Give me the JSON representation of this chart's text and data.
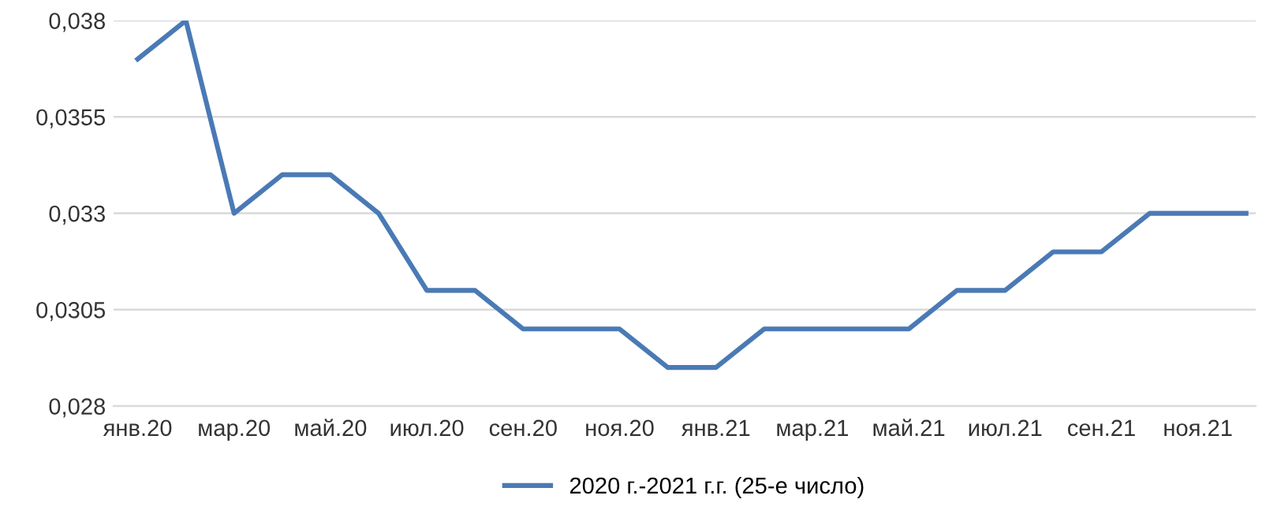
{
  "chart_data": {
    "type": "line",
    "categories": [
      "янв.20",
      null,
      "мар.20",
      null,
      "май.20",
      null,
      "июл.20",
      null,
      "сен.20",
      null,
      "ноя.20",
      null,
      "янв.21",
      null,
      "мар.21",
      null,
      "май.21",
      null,
      "июл.21",
      null,
      "сен.21",
      null,
      "ноя.21",
      null
    ],
    "series": [
      {
        "name": "2020 г.-2021 г.г. (25-е число)",
        "color": "#4a7ab5",
        "values": [
          0.037,
          0.038,
          0.033,
          0.034,
          0.034,
          0.033,
          0.031,
          0.031,
          0.03,
          0.03,
          0.03,
          0.029,
          0.029,
          0.03,
          0.03,
          0.03,
          0.03,
          0.031,
          0.031,
          0.032,
          0.032,
          0.033,
          0.033,
          0.033
        ]
      }
    ],
    "ylim": [
      0.028,
      0.038
    ],
    "yticks": [
      {
        "value": 0.028,
        "label": "0,028"
      },
      {
        "value": 0.0305,
        "label": "0,0305"
      },
      {
        "value": 0.033,
        "label": "0,033"
      },
      {
        "value": 0.0355,
        "label": "0,0355"
      },
      {
        "value": 0.038,
        "label": "0,038"
      }
    ],
    "grid": "y",
    "legend": "bottom",
    "marker": "none",
    "line_style": "solid"
  }
}
